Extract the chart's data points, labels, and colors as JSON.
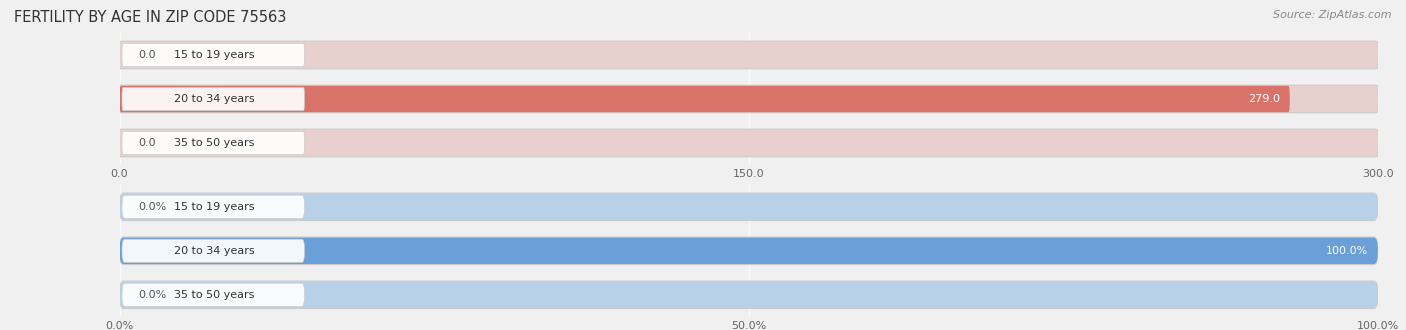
{
  "title": "FERTILITY BY AGE IN ZIP CODE 75563",
  "source": "Source: ZipAtlas.com",
  "top_chart": {
    "categories": [
      "15 to 19 years",
      "20 to 34 years",
      "35 to 50 years"
    ],
    "values": [
      0.0,
      279.0,
      0.0
    ],
    "xlim": [
      0,
      300.0
    ],
    "xticks": [
      0.0,
      150.0,
      300.0
    ],
    "xtick_labels": [
      "0.0",
      "150.0",
      "300.0"
    ],
    "bar_color_full": "#d9736a",
    "bar_color_empty": "#e8d0ce",
    "bar_bg_color": "#f0f0f0",
    "label_color_inside": "#ffffff",
    "label_color_outside": "#666666"
  },
  "bottom_chart": {
    "categories": [
      "15 to 19 years",
      "20 to 34 years",
      "35 to 50 years"
    ],
    "values": [
      0.0,
      100.0,
      0.0
    ],
    "xlim": [
      0,
      100.0
    ],
    "xticks": [
      0.0,
      50.0,
      100.0
    ],
    "xtick_labels": [
      "0.0%",
      "50.0%",
      "100.0%"
    ],
    "bar_color_full": "#6a9fd8",
    "bar_color_empty": "#b8d0e8",
    "bar_bg_color": "#f0f0f0",
    "label_color_inside": "#ffffff",
    "label_color_outside": "#666666"
  },
  "bg_color": "#f0f0f0",
  "bar_container_color": "#e8e8e8",
  "bar_container_border": "#d0d0d0",
  "title_fontsize": 10.5,
  "source_fontsize": 8,
  "label_fontsize": 8,
  "tick_fontsize": 8,
  "cat_fontsize": 8
}
